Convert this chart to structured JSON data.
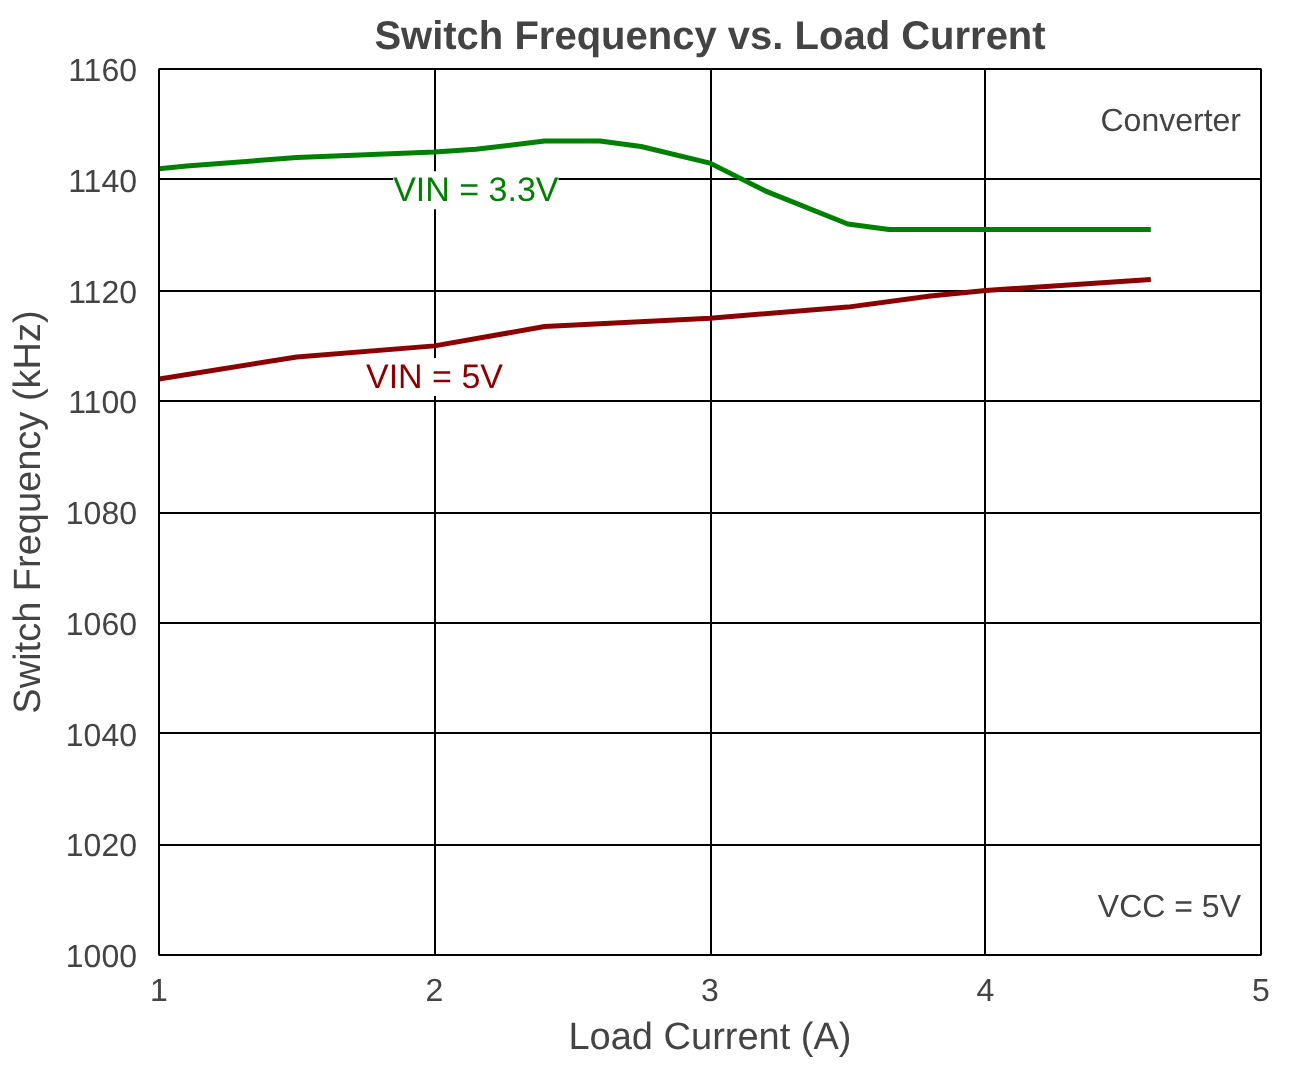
{
  "chart_data": {
    "type": "line",
    "title": "Switch Frequency vs. Load Current",
    "xlabel": "Load Current (A)",
    "ylabel": "Switch Frequency (kHz)",
    "xlim": [
      1,
      5
    ],
    "xticks": [
      1,
      2,
      3,
      4,
      5
    ],
    "ylim": [
      1000,
      1160
    ],
    "yticks": [
      1000,
      1020,
      1040,
      1060,
      1080,
      1100,
      1120,
      1140,
      1160
    ],
    "grid": true,
    "marker": "none",
    "line_style": "solid",
    "series": [
      {
        "name": "VIN = 3.3V",
        "color": "#008000",
        "x": [
          1,
          1.1,
          1.5,
          2,
          2.15,
          2.4,
          2.6,
          2.75,
          3,
          3.2,
          3.5,
          3.65,
          4,
          4.6
        ],
        "values": [
          1142,
          1142.5,
          1144,
          1145,
          1145.5,
          1147,
          1147,
          1146,
          1143,
          1138,
          1132,
          1131,
          1131,
          1131
        ]
      },
      {
        "name": "VIN = 5V",
        "color": "#8b0000",
        "x": [
          1,
          1.5,
          2,
          2.4,
          3,
          3.5,
          3.8,
          4,
          4.6
        ],
        "values": [
          1104,
          1108,
          1110,
          1113.5,
          1115,
          1117,
          1119,
          1120,
          1122
        ]
      }
    ],
    "annotations": [
      "Converter",
      "VCC = 5V"
    ]
  }
}
